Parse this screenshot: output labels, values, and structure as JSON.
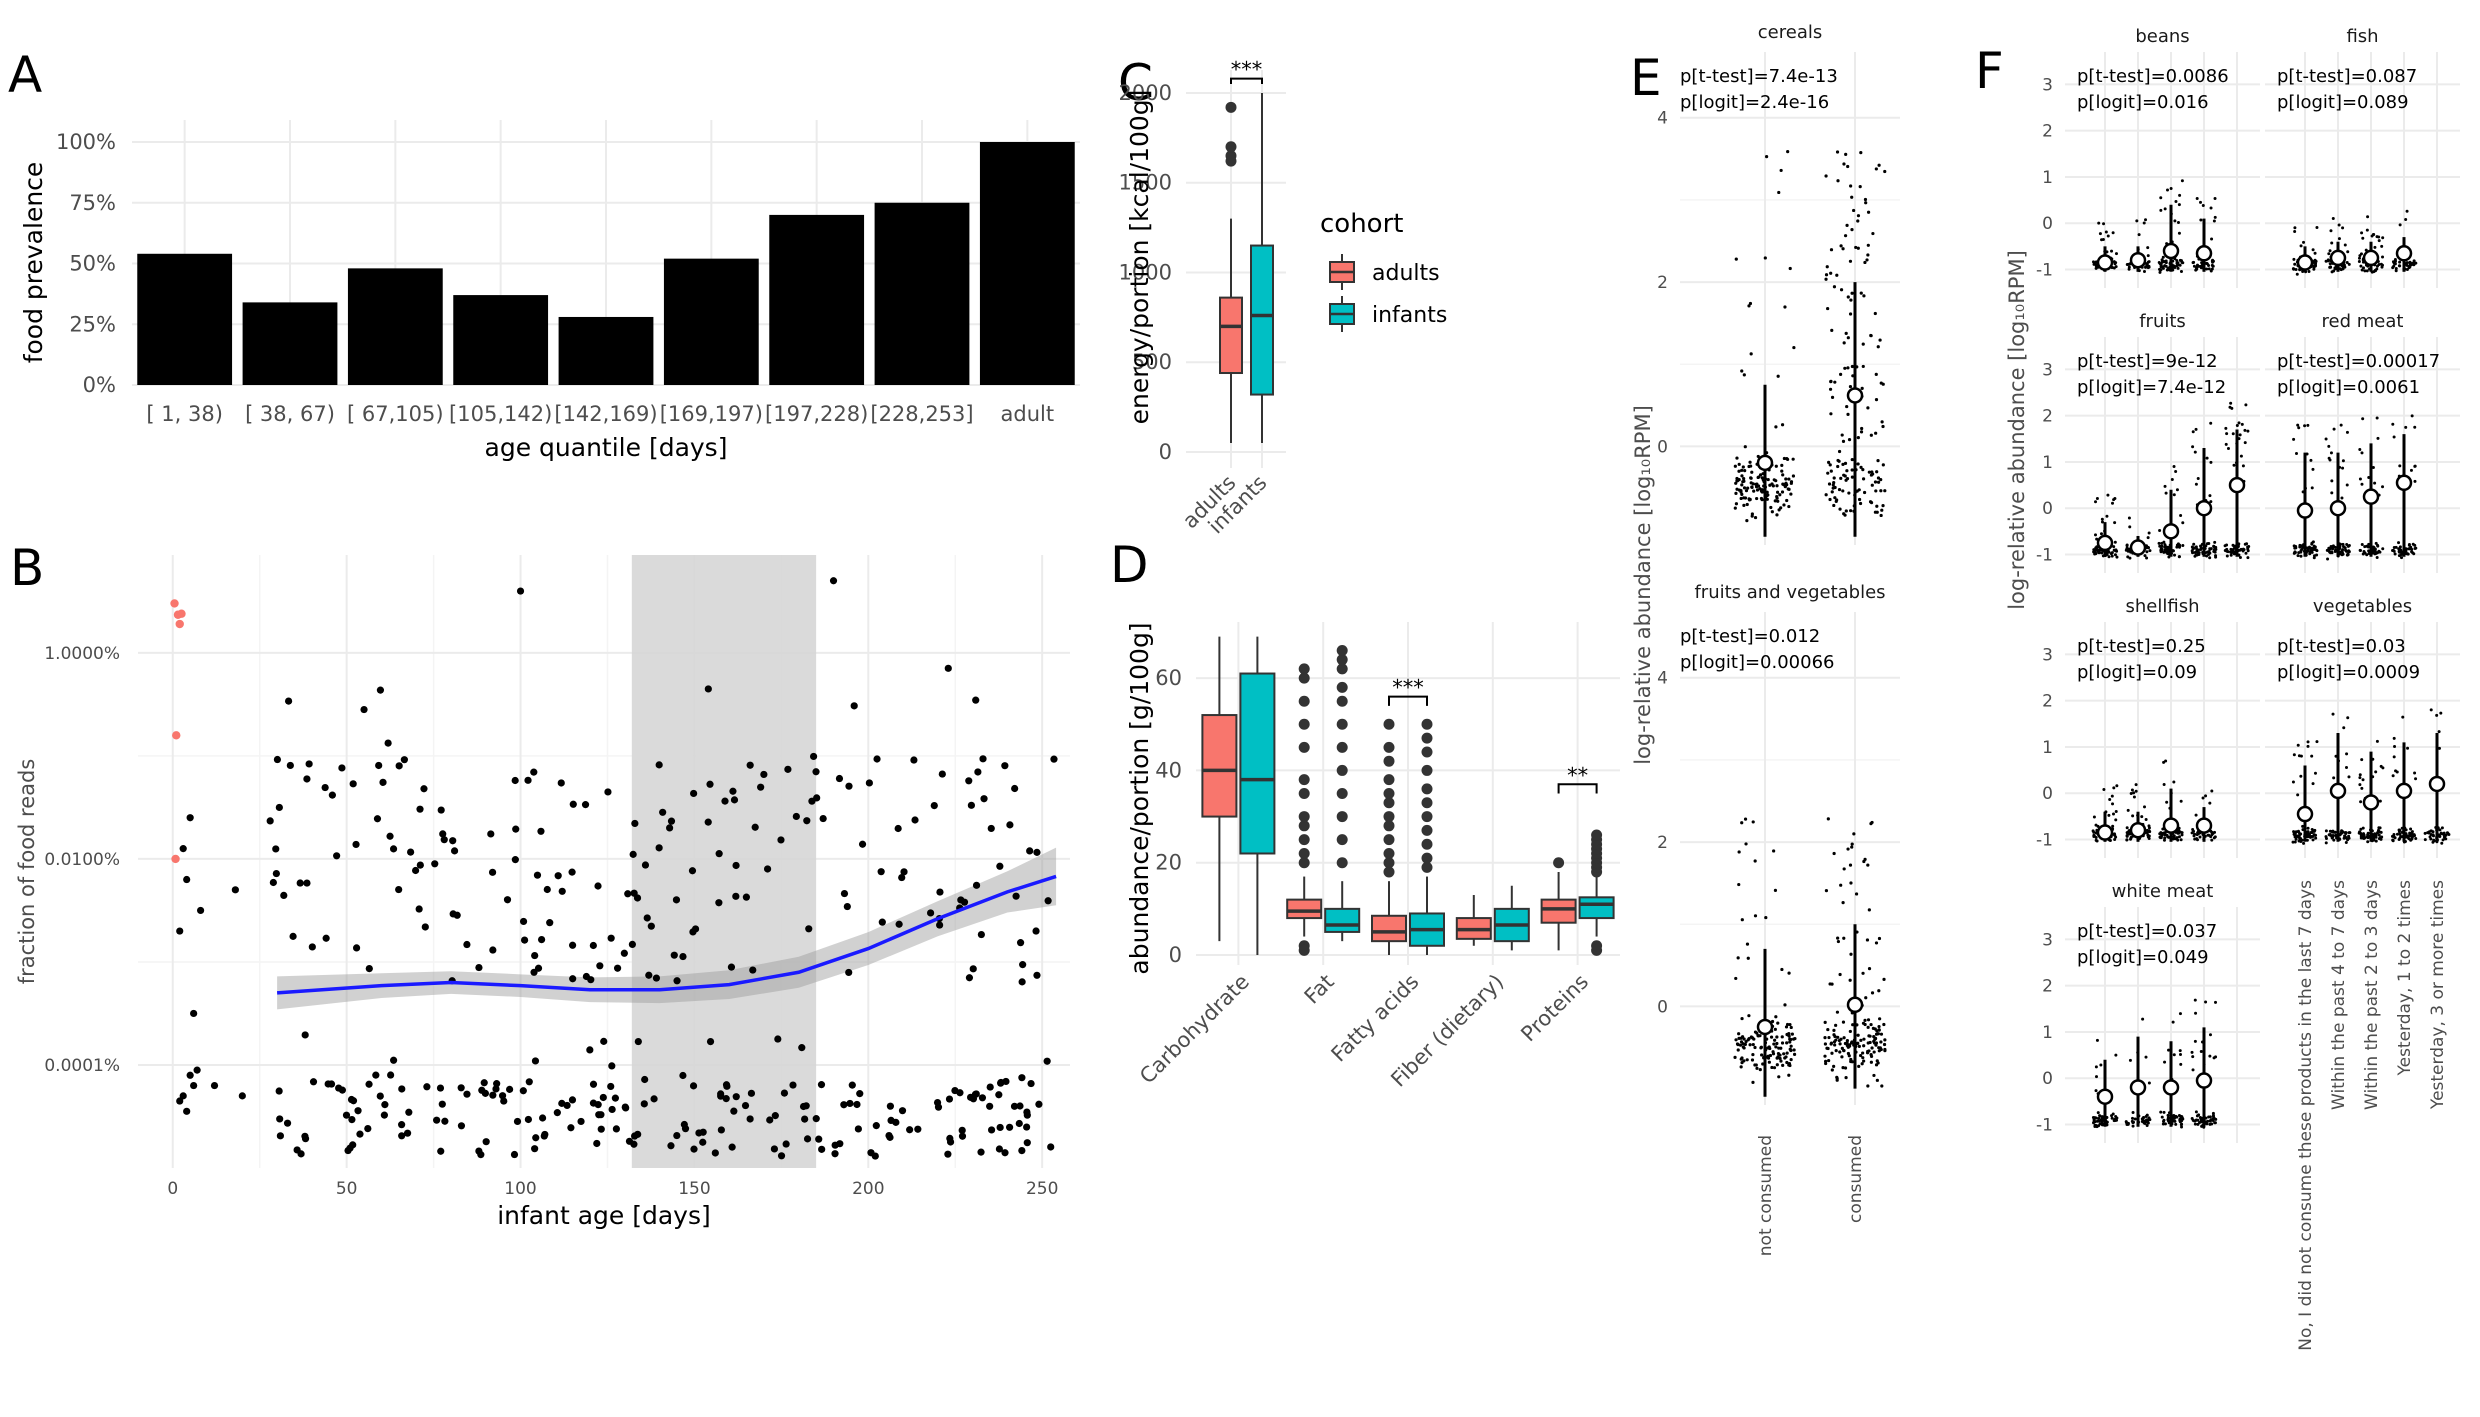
{
  "colors": {
    "adults": "#F8766D",
    "infants": "#00BFC4",
    "smooth": "#1a1aff",
    "bar": "#000000"
  },
  "chart_data": [
    {
      "id": "A",
      "type": "bar",
      "panel_label": "A",
      "xlabel": "age quantile [days]",
      "ylabel": "food prevalence",
      "categories": [
        "[  1, 38)",
        "[ 38, 67)",
        "[ 67,105)",
        "[105,142)",
        "[142,169)",
        "[169,197)",
        "[197,228)",
        "[228,253]",
        "adult"
      ],
      "values": [
        0.54,
        0.34,
        0.48,
        0.37,
        0.28,
        0.52,
        0.7,
        0.75,
        1.0
      ],
      "ylim": [
        0,
        1.0
      ],
      "yticks": [
        0,
        0.25,
        0.5,
        0.75,
        1.0
      ],
      "ytick_labels": [
        "0%",
        "25%",
        "50%",
        "75%",
        "100%"
      ]
    },
    {
      "id": "B",
      "type": "scatter",
      "panel_label": "B",
      "xlabel": "infant age [days]",
      "ylabel": "fraction of food reads",
      "xlim": [
        -10,
        258
      ],
      "xticks": [
        0,
        50,
        100,
        150,
        200,
        250
      ],
      "ytick_labels": [
        "1.0000%",
        "0.0100%",
        "0.0001%"
      ],
      "ytick_log10": [
        -2,
        -4,
        -6
      ],
      "ylim_log10": [
        -7.0,
        -1.05
      ],
      "shaded_x": [
        132,
        185
      ],
      "smooth": {
        "x": [
          30,
          60,
          80,
          100,
          120,
          140,
          160,
          180,
          200,
          220,
          240,
          254
        ],
        "log10": [
          -5.3,
          -5.23,
          -5.2,
          -5.23,
          -5.27,
          -5.27,
          -5.22,
          -5.1,
          -4.87,
          -4.58,
          -4.32,
          -4.17
        ]
      },
      "smooth_band": [
        0.16,
        0.12,
        0.11,
        0.11,
        0.12,
        0.13,
        0.14,
        0.15,
        0.16,
        0.17,
        0.2,
        0.28
      ],
      "adult_like_points_x": [
        0,
        1,
        2,
        3,
        4,
        5
      ],
      "adult_like_points_log10": [
        -1.43,
        -1.68,
        -1.85,
        -1.73,
        -1.78,
        -3.8
      ],
      "red_points": [
        [
          0.5,
          -1.52
        ],
        [
          1.5,
          -1.63
        ],
        [
          2,
          -1.72
        ],
        [
          2.5,
          -1.62
        ],
        [
          1,
          -2.8
        ],
        [
          0.8,
          -4.0
        ]
      ]
    },
    {
      "id": "C",
      "type": "boxplot",
      "panel_label": "C",
      "ylabel": "energy/portion [kcal/100g]",
      "categories": [
        "adults",
        "infants"
      ],
      "ylim": [
        0,
        2100
      ],
      "yticks": [
        0,
        500,
        1000,
        1500,
        2000
      ],
      "boxes": [
        {
          "group": "adults",
          "min": 50,
          "q1": 440,
          "median": 700,
          "q3": 860,
          "max": 1300,
          "outliers": [
            1620,
            1650,
            1700,
            1920
          ]
        },
        {
          "group": "infants",
          "min": 50,
          "q1": 320,
          "median": 760,
          "q3": 1150,
          "max": 2000,
          "outliers": []
        }
      ],
      "significance": "***",
      "legend": {
        "title": "cohort",
        "items": [
          "adults",
          "infants"
        ]
      }
    },
    {
      "id": "D",
      "type": "boxplot",
      "panel_label": "D",
      "ylabel": "abundance/portion [g/100g]",
      "categories": [
        "Carbohydrate",
        "Fat",
        "Fatty acids",
        "Fiber (dietary)",
        "Proteins"
      ],
      "ylim": [
        0,
        70
      ],
      "yticks": [
        0,
        20,
        40,
        60
      ],
      "boxes": [
        {
          "category": "Carbohydrate",
          "group": "adults",
          "min": 3,
          "q1": 30,
          "median": 40,
          "q3": 52,
          "max": 69,
          "outliers": []
        },
        {
          "category": "Carbohydrate",
          "group": "infants",
          "min": 0,
          "q1": 22,
          "median": 38,
          "q3": 61,
          "max": 69,
          "outliers": []
        },
        {
          "category": "Fat",
          "group": "adults",
          "min": 4,
          "q1": 8,
          "median": 9.5,
          "q3": 12,
          "max": 17,
          "outliers": [
            2,
            1,
            20,
            22,
            25,
            28,
            30,
            35,
            38,
            45,
            50,
            55,
            60,
            62
          ]
        },
        {
          "category": "Fat",
          "group": "infants",
          "min": 3,
          "q1": 5,
          "median": 6.5,
          "q3": 10,
          "max": 16,
          "outliers": [
            20,
            25,
            30,
            35,
            40,
            45,
            50,
            55,
            58,
            62,
            64,
            66
          ]
        },
        {
          "category": "Fatty acids",
          "group": "adults",
          "min": 0,
          "q1": 3,
          "median": 5,
          "q3": 8.5,
          "max": 16,
          "outliers": [
            18,
            20,
            22,
            25,
            28,
            30,
            33,
            35,
            38,
            42,
            45,
            50
          ]
        },
        {
          "category": "Fatty acids",
          "group": "infants",
          "min": 0,
          "q1": 2,
          "median": 5.5,
          "q3": 9,
          "max": 17,
          "outliers": [
            19,
            21,
            24,
            27,
            30,
            33,
            36,
            40,
            44,
            47,
            50
          ]
        },
        {
          "category": "Fiber (dietary)",
          "group": "adults",
          "min": 2,
          "q1": 3.5,
          "median": 5.5,
          "q3": 8,
          "max": 13,
          "outliers": []
        },
        {
          "category": "Fiber (dietary)",
          "group": "infants",
          "min": 1,
          "q1": 3,
          "median": 6.5,
          "q3": 10,
          "max": 15,
          "outliers": []
        },
        {
          "category": "Proteins",
          "group": "adults",
          "min": 1,
          "q1": 7,
          "median": 10,
          "q3": 12,
          "max": 18,
          "outliers": [
            20
          ]
        },
        {
          "category": "Proteins",
          "group": "infants",
          "min": 4,
          "q1": 8,
          "median": 11,
          "q3": 12.5,
          "max": 17,
          "outliers": [
            1,
            2,
            18,
            19,
            20,
            21,
            22,
            23,
            24,
            25,
            26
          ]
        }
      ],
      "significance": [
        {
          "category": "Fatty acids",
          "label": "***"
        },
        {
          "category": "Proteins",
          "label": "**"
        }
      ]
    },
    {
      "id": "E",
      "type": "scatter",
      "panel_label": "E",
      "ylabel": "log-relative abundance [log₁₀RPM]",
      "categories": [
        "not consumed",
        "consumed"
      ],
      "facets": [
        {
          "title": "cereals",
          "p_ttest": "p[t-test]=7.4e-13",
          "p_logit": "p[logit]=2.4e-16",
          "ylim": [
            -1.2,
            4.8
          ],
          "yticks": [
            0,
            2,
            4
          ],
          "means": [
            -0.2,
            0.62
          ],
          "lo": [
            -1.1,
            -1.1
          ],
          "hi": [
            0.75,
            2.0
          ]
        },
        {
          "title": "fruits and vegetables",
          "p_ttest": "p[t-test]=0.012",
          "p_logit": "p[logit]=0.00066",
          "ylim": [
            -1.2,
            4.8
          ],
          "yticks": [
            0,
            2,
            4
          ],
          "means": [
            -0.25,
            0.02
          ],
          "lo": [
            -1.1,
            -1.0
          ],
          "hi": [
            0.7,
            1.0
          ]
        }
      ]
    },
    {
      "id": "F",
      "type": "scatter",
      "panel_label": "F",
      "ylabel": "log-relative abundance [log₁₀RPM]",
      "categories": [
        "No, I did not consume these products in the last 7 days",
        "Within the past 4 to 7 days",
        "Within the past 2 to 3 days",
        "Yesterday, 1 to 2 times",
        "Yesterday, 3 or more times"
      ],
      "ylim": [
        -1.4,
        3.7
      ],
      "yticks": [
        -1,
        0,
        1,
        2,
        3
      ],
      "facets": [
        {
          "title": "beans",
          "p_ttest": "p[t-test]=0.0086",
          "p_logit": "p[logit]=0.016",
          "means": [
            -0.85,
            -0.8,
            -0.6,
            -0.65
          ],
          "hi": [
            -0.5,
            -0.5,
            0.4,
            0.1
          ]
        },
        {
          "title": "fish",
          "p_ttest": "p[t-test]=0.087",
          "p_logit": "p[logit]=0.089",
          "means": [
            -0.85,
            -0.75,
            -0.75,
            -0.65
          ],
          "hi": [
            -0.5,
            -0.4,
            -0.4,
            -0.3
          ]
        },
        {
          "title": "fruits",
          "p_ttest": "p[t-test]=9e-12",
          "p_logit": "p[logit]=7.4e-12",
          "means": [
            -0.75,
            -0.85,
            -0.5,
            0.0,
            0.5
          ],
          "hi": [
            -0.3,
            -0.6,
            0.4,
            1.3,
            1.7
          ]
        },
        {
          "title": "red meat",
          "p_ttest": "p[t-test]=0.00017",
          "p_logit": "p[logit]=0.0061",
          "means": [
            -0.05,
            0.0,
            0.25,
            0.55
          ],
          "hi": [
            1.2,
            1.2,
            1.4,
            1.6
          ]
        },
        {
          "title": "shellfish",
          "p_ttest": "p[t-test]=0.25",
          "p_logit": "p[logit]=0.09",
          "means": [
            -0.85,
            -0.8,
            -0.7,
            -0.7
          ],
          "hi": [
            -0.4,
            -0.4,
            0.1,
            -0.3
          ]
        },
        {
          "title": "vegetables",
          "p_ttest": "p[t-test]=0.03",
          "p_logit": "p[logit]=0.0009",
          "means": [
            -0.45,
            0.05,
            -0.2,
            0.05,
            0.2
          ],
          "hi": [
            0.6,
            1.3,
            0.9,
            1.1,
            1.3
          ]
        },
        {
          "title": "white meat",
          "p_ttest": "p[t-test]=0.037",
          "p_logit": "p[logit]=0.049",
          "means": [
            -0.4,
            -0.2,
            -0.2,
            -0.05
          ],
          "hi": [
            0.4,
            0.9,
            0.8,
            1.1
          ]
        }
      ]
    }
  ]
}
